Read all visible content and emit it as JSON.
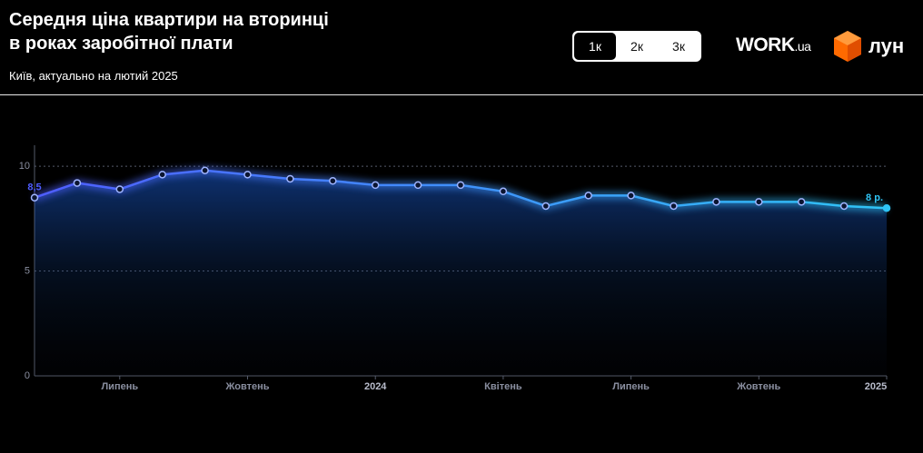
{
  "header": {
    "title": [
      "Середня ціна квартири на вторинці",
      "в роках заробітної плати"
    ],
    "subtitle": "Київ, актуально на лютий 2025"
  },
  "controls": {
    "options": [
      "1к",
      "2к",
      "3к"
    ],
    "selected": 0
  },
  "logos": [
    "WORK",
    ".ua",
    "лун"
  ],
  "chart_data": {
    "type": "line",
    "categories": [
      null,
      null,
      "Липень",
      null,
      null,
      "Жовтень",
      null,
      null,
      "2024",
      null,
      null,
      "Квітень",
      null,
      null,
      "Липень",
      null,
      null,
      "Жовтень",
      null,
      null,
      "2025"
    ],
    "series": [
      {
        "colors": [
          "#4f5dff",
          "#2fc4f5"
        ],
        "values": [
          8.5,
          9.2,
          8.9,
          9.6,
          9.8,
          9.6,
          9.4,
          9.3,
          9.1,
          9.1,
          9.1,
          8.8,
          8.1,
          8.6,
          8.6,
          8.1,
          8.3,
          8.3,
          8.3,
          8.1,
          8.0
        ],
        "value_labels": [
          "8,5",
          null,
          null,
          null,
          null,
          null,
          null,
          null,
          null,
          null,
          null,
          null,
          null,
          null,
          null,
          null,
          null,
          null,
          null,
          null,
          "8 р."
        ]
      }
    ],
    "ylim": [
      0,
      11
    ],
    "yticks": [
      0,
      5,
      10
    ],
    "grid": true
  }
}
